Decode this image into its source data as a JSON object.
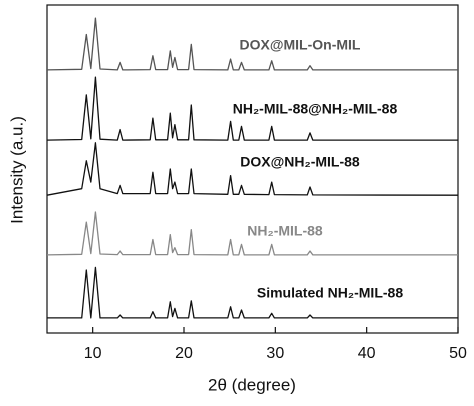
{
  "chart_data": {
    "type": "line",
    "x_label": "2θ (degree)",
    "y_label": "Intensity (a.u.)",
    "xlim": [
      5,
      50
    ],
    "xticks": [
      10,
      20,
      30,
      40,
      50
    ],
    "ylim": [
      0,
      100
    ],
    "x": [
      5,
      8.8,
      9.3,
      9.8,
      10.3,
      10.8,
      12.7,
      13.0,
      13.3,
      16.3,
      16.6,
      16.9,
      18.2,
      18.5,
      18.75,
      19.0,
      19.3,
      20.5,
      20.8,
      21.1,
      24.8,
      25.1,
      25.4,
      26.0,
      26.3,
      26.6,
      29.3,
      29.6,
      29.9,
      33.5,
      33.8,
      34.1,
      50
    ],
    "series": [
      {
        "name": "DOX@MIL-On-MIL",
        "color": "#555555",
        "values": [
          80.2,
          80.4,
          91,
          80.6,
          96,
          80.5,
          80.2,
          82.5,
          80.2,
          80.3,
          84.5,
          80.3,
          80.3,
          86,
          81,
          84,
          80.3,
          80.3,
          88,
          80.3,
          80.2,
          83.5,
          80.2,
          80.2,
          82.5,
          80.2,
          80.2,
          83,
          80.2,
          80.2,
          81.5,
          80.2,
          80.2
        ]
      },
      {
        "name": "NH₂-MIL-88@NH₂-MIL-88",
        "color": "#111111",
        "values": [
          58.8,
          59,
          72.6,
          59.2,
          78,
          59.1,
          58.8,
          62,
          58.8,
          58.9,
          65.5,
          58.9,
          58.9,
          67,
          59.5,
          63.5,
          58.9,
          58.9,
          69.5,
          58.9,
          58.8,
          64.5,
          58.8,
          58.8,
          63,
          58.8,
          58.8,
          63,
          58.8,
          58.8,
          61,
          58.8,
          58.8
        ]
      },
      {
        "name": "DOX@NH₂-MIL-88",
        "color": "#111111",
        "values": [
          42,
          44,
          52.5,
          46,
          58,
          44,
          42.5,
          45,
          42.5,
          42.5,
          49,
          42.5,
          42.5,
          50,
          44,
          46,
          42.5,
          42.5,
          50,
          42.5,
          42.3,
          48,
          42.3,
          42.3,
          45,
          42.3,
          42.2,
          46,
          42.2,
          42.1,
          44.5,
          42.1,
          42
        ]
      },
      {
        "name": "NH₂-MIL-88",
        "color": "#888888",
        "values": [
          23.8,
          24,
          33.8,
          24.2,
          36.9,
          24.1,
          23.9,
          25,
          23.9,
          23.9,
          28.5,
          23.9,
          23.9,
          30,
          24.5,
          26,
          23.9,
          23.9,
          31.5,
          23.9,
          23.8,
          28.5,
          23.8,
          23.8,
          27,
          23.8,
          23.8,
          27,
          23.8,
          23.8,
          25,
          23.8,
          23.8
        ]
      },
      {
        "name": "Simulated NH₂-MIL-88",
        "color": "#111111",
        "values": [
          4.6,
          4.6,
          19.2,
          4.6,
          20,
          4.6,
          4.6,
          5.5,
          4.6,
          4.6,
          6.5,
          4.6,
          4.6,
          9.5,
          5,
          7.5,
          4.6,
          4.6,
          9.8,
          4.6,
          4.6,
          8,
          4.6,
          4.6,
          7,
          4.6,
          4.6,
          6,
          4.6,
          4.6,
          5.5,
          4.6,
          4.6
        ]
      }
    ]
  }
}
